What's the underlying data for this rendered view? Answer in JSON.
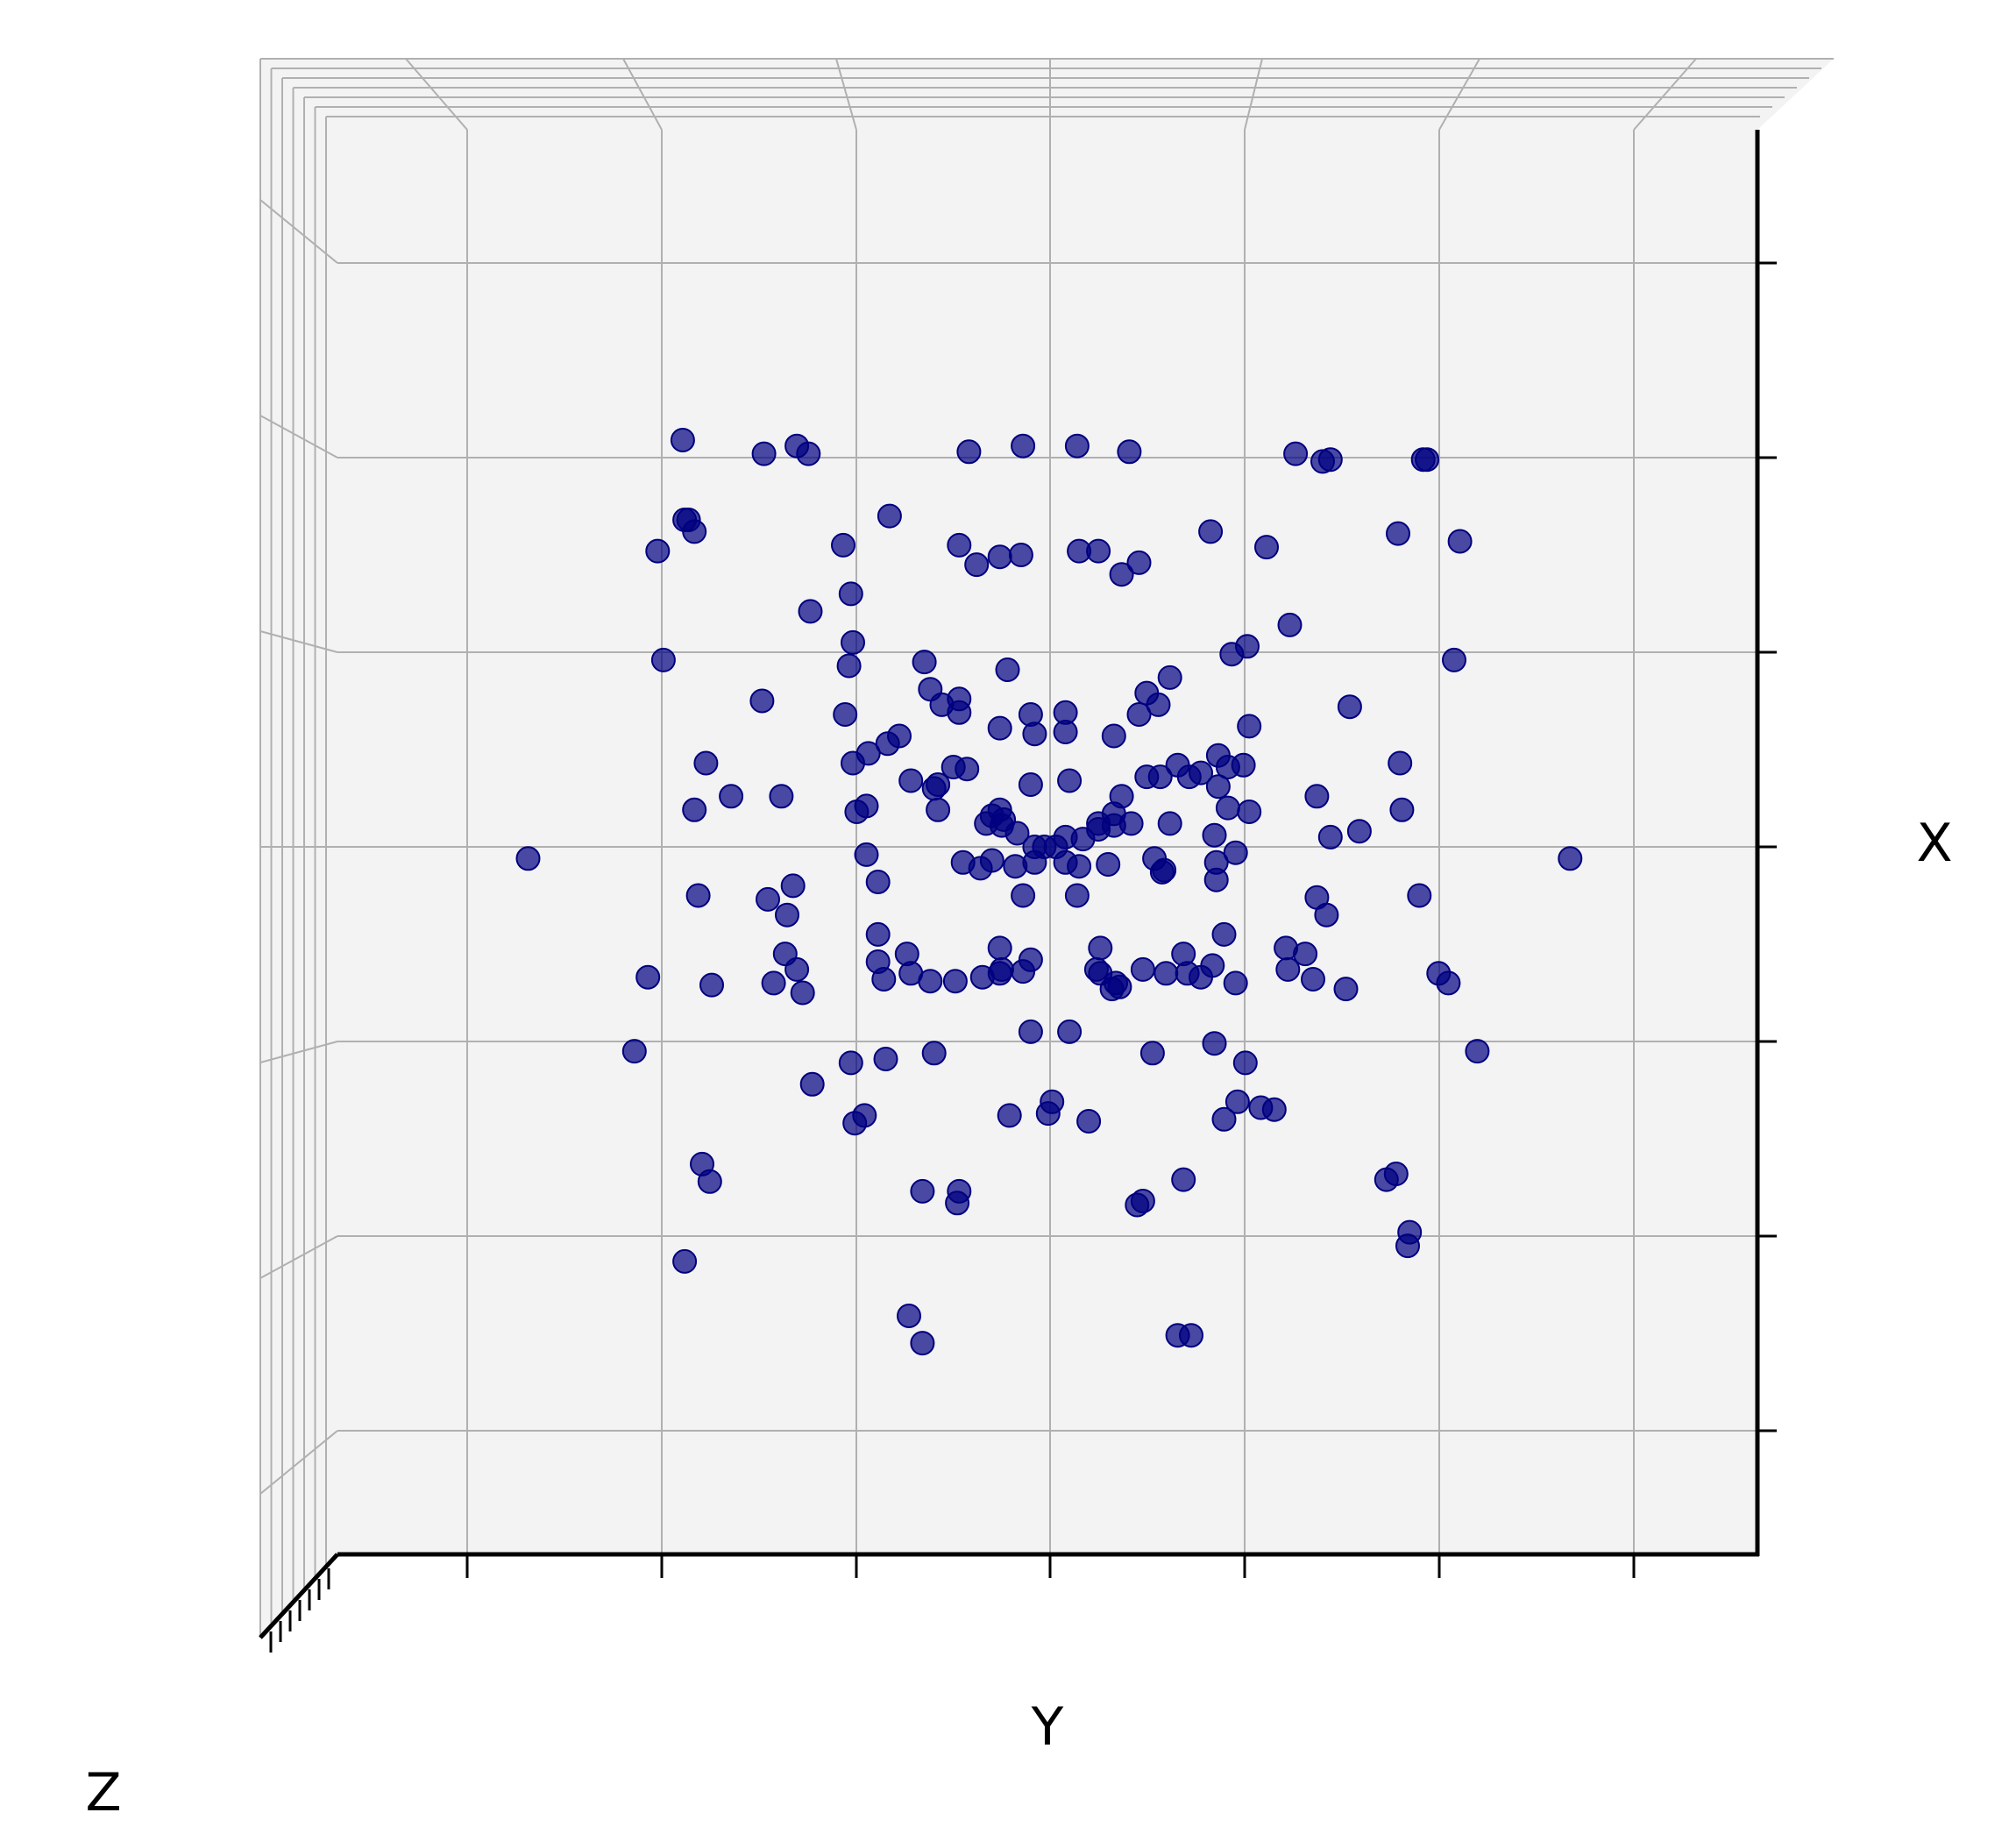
{
  "chart_data": {
    "type": "scatter",
    "projection": "3d",
    "title": "",
    "xlabel": "X",
    "ylabel": "Y",
    "zlabel": "Z",
    "tick_labels_visible": false,
    "grid": true,
    "ylim": [
      -3,
      3
    ],
    "xlim": [
      -3,
      3
    ],
    "colors": {
      "marker": "#000080",
      "pane": "#f3f3f3",
      "grid": "#b0b0b0",
      "axis": "#000000"
    },
    "series": [
      {
        "points": [
          [
            -1.9,
            2.09
          ],
          [
            -1.48,
            2.02
          ],
          [
            -1.31,
            2.06
          ],
          [
            -1.25,
            2.02
          ],
          [
            -0.42,
            2.03
          ],
          [
            -0.14,
            2.06
          ],
          [
            0.14,
            2.06
          ],
          [
            0.41,
            2.03
          ],
          [
            1.27,
            2.02
          ],
          [
            1.41,
            1.98
          ],
          [
            1.45,
            1.99
          ],
          [
            1.93,
            1.99
          ],
          [
            1.95,
            1.99
          ],
          [
            -1.87,
            1.68
          ],
          [
            -1.89,
            1.68
          ],
          [
            -1.84,
            1.62
          ],
          [
            -2.03,
            1.52
          ],
          [
            -0.83,
            1.7
          ],
          [
            -1.07,
            1.55
          ],
          [
            -0.47,
            1.55
          ],
          [
            -0.38,
            1.45
          ],
          [
            -0.26,
            1.49
          ],
          [
            -0.15,
            1.5
          ],
          [
            0.15,
            1.52
          ],
          [
            0.25,
            1.52
          ],
          [
            0.37,
            1.4
          ],
          [
            0.46,
            1.46
          ],
          [
            0.83,
            1.62
          ],
          [
            1.12,
            1.54
          ],
          [
            1.8,
            1.61
          ],
          [
            2.12,
            1.57
          ],
          [
            -1.24,
            1.21
          ],
          [
            -1.03,
            1.3
          ],
          [
            -1.02,
            1.05
          ],
          [
            -1.04,
            0.93
          ],
          [
            -2.0,
            0.96
          ],
          [
            -1.49,
            0.75
          ],
          [
            -1.06,
            0.68
          ],
          [
            -0.65,
            0.95
          ],
          [
            -0.62,
            0.81
          ],
          [
            -0.22,
            0.91
          ],
          [
            0.62,
            0.87
          ],
          [
            0.5,
            0.79
          ],
          [
            0.94,
            0.99
          ],
          [
            1.02,
            1.03
          ],
          [
            1.24,
            1.14
          ],
          [
            1.03,
            0.62
          ],
          [
            1.55,
            0.72
          ],
          [
            2.09,
            0.96
          ],
          [
            -0.56,
            0.73
          ],
          [
            -0.47,
            0.69
          ],
          [
            -0.47,
            0.76
          ],
          [
            -0.26,
            0.61
          ],
          [
            -0.1,
            0.68
          ],
          [
            0.08,
            0.69
          ],
          [
            0.08,
            0.59
          ],
          [
            -0.08,
            0.58
          ],
          [
            0.33,
            0.57
          ],
          [
            0.46,
            0.68
          ],
          [
            0.56,
            0.73
          ],
          [
            -1.78,
            0.43
          ],
          [
            -1.84,
            0.19
          ],
          [
            -1.39,
            0.26
          ],
          [
            -1.02,
            0.43
          ],
          [
            -1.0,
            0.18
          ],
          [
            -0.94,
            0.48
          ],
          [
            -0.84,
            0.53
          ],
          [
            -0.78,
            0.57
          ],
          [
            -0.72,
            0.34
          ],
          [
            -0.6,
            0.3
          ],
          [
            -0.58,
            0.32
          ],
          [
            -0.5,
            0.41
          ],
          [
            -0.43,
            0.4
          ],
          [
            -0.33,
            0.12
          ],
          [
            -0.25,
            0.11
          ],
          [
            -0.1,
            0.32
          ],
          [
            0.1,
            0.34
          ],
          [
            0.25,
            0.12
          ],
          [
            0.33,
            0.17
          ],
          [
            0.37,
            0.26
          ],
          [
            0.5,
            0.36
          ],
          [
            0.57,
            0.36
          ],
          [
            0.66,
            0.42
          ],
          [
            0.72,
            0.36
          ],
          [
            0.78,
            0.38
          ],
          [
            0.87,
            0.31
          ],
          [
            0.87,
            0.47
          ],
          [
            0.92,
            0.41
          ],
          [
            1.0,
            0.42
          ],
          [
            1.03,
            0.18
          ],
          [
            1.38,
            0.26
          ],
          [
            1.81,
            0.43
          ],
          [
            1.82,
            0.19
          ],
          [
            -1.65,
            0.26
          ],
          [
            -0.95,
            0.21
          ],
          [
            -0.58,
            0.19
          ],
          [
            -0.3,
            0.16
          ],
          [
            -0.26,
            0.19
          ],
          [
            -0.24,
            0.14
          ],
          [
            -0.17,
            0.07
          ],
          [
            -0.08,
            0.0
          ],
          [
            -0.03,
            0.0
          ],
          [
            0.03,
            0.0
          ],
          [
            0.08,
            0.05
          ],
          [
            0.17,
            0.04
          ],
          [
            0.25,
            0.09
          ],
          [
            0.33,
            0.11
          ],
          [
            0.42,
            0.12
          ],
          [
            0.62,
            0.12
          ],
          [
            0.85,
            0.06
          ],
          [
            0.92,
            0.2
          ],
          [
            1.6,
            0.08
          ],
          [
            1.45,
            0.05
          ],
          [
            -2.7,
            -0.06
          ],
          [
            -0.95,
            -0.04
          ],
          [
            -0.45,
            -0.08
          ],
          [
            -0.36,
            -0.11
          ],
          [
            -0.3,
            -0.07
          ],
          [
            -0.18,
            -0.1
          ],
          [
            -0.08,
            -0.08
          ],
          [
            0.08,
            -0.08
          ],
          [
            0.15,
            -0.1
          ],
          [
            0.3,
            -0.09
          ],
          [
            0.54,
            -0.06
          ],
          [
            0.59,
            -0.12
          ],
          [
            0.58,
            -0.13
          ],
          [
            0.86,
            -0.08
          ],
          [
            0.96,
            -0.03
          ],
          [
            2.69,
            -0.06
          ],
          [
            -1.82,
            -0.25
          ],
          [
            -1.46,
            -0.27
          ],
          [
            -1.33,
            -0.2
          ],
          [
            -1.36,
            -0.35
          ],
          [
            -0.89,
            -0.18
          ],
          [
            -0.14,
            -0.25
          ],
          [
            0.14,
            -0.25
          ],
          [
            0.86,
            -0.17
          ],
          [
            1.38,
            -0.26
          ],
          [
            1.43,
            -0.35
          ],
          [
            1.91,
            -0.25
          ],
          [
            -1.37,
            -0.55
          ],
          [
            -1.31,
            -0.63
          ],
          [
            -0.89,
            -0.45
          ],
          [
            -0.74,
            -0.55
          ],
          [
            -0.26,
            -0.52
          ],
          [
            -0.26,
            -0.65
          ],
          [
            0.26,
            -0.65
          ],
          [
            0.26,
            -0.52
          ],
          [
            0.69,
            -0.55
          ],
          [
            0.9,
            -0.45
          ],
          [
            1.23,
            -0.63
          ],
          [
            1.32,
            -0.55
          ],
          [
            2.01,
            -0.65
          ],
          [
            -2.08,
            -0.67
          ],
          [
            -1.75,
            -0.71
          ],
          [
            -1.43,
            -0.7
          ],
          [
            -1.28,
            -0.75
          ],
          [
            -0.89,
            -0.59
          ],
          [
            -0.86,
            -0.68
          ],
          [
            -0.72,
            -0.65
          ],
          [
            -0.62,
            -0.69
          ],
          [
            -0.49,
            -0.69
          ],
          [
            -0.35,
            -0.67
          ],
          [
            -0.25,
            -0.63
          ],
          [
            -0.14,
            -0.64
          ],
          [
            -0.1,
            -0.58
          ],
          [
            0.24,
            -0.63
          ],
          [
            0.32,
            -0.73
          ],
          [
            0.34,
            -0.7
          ],
          [
            0.36,
            -0.72
          ],
          [
            0.48,
            -0.63
          ],
          [
            0.6,
            -0.65
          ],
          [
            0.71,
            -0.65
          ],
          [
            0.78,
            -0.67
          ],
          [
            0.84,
            -0.61
          ],
          [
            0.96,
            -0.7
          ],
          [
            1.22,
            -0.52
          ],
          [
            1.36,
            -0.68
          ],
          [
            1.53,
            -0.73
          ],
          [
            2.06,
            -0.7
          ],
          [
            -2.15,
            -1.05
          ],
          [
            -1.23,
            -1.22
          ],
          [
            -0.85,
            -1.09
          ],
          [
            -1.03,
            -1.11
          ],
          [
            -0.6,
            -1.06
          ],
          [
            -0.1,
            -0.95
          ],
          [
            0.1,
            -0.95
          ],
          [
            0.53,
            -1.06
          ],
          [
            0.85,
            -1.01
          ],
          [
            1.01,
            -1.11
          ],
          [
            2.21,
            -1.05
          ],
          [
            -1.01,
            -1.42
          ],
          [
            -0.96,
            -1.38
          ],
          [
            -0.21,
            -1.38
          ],
          [
            0.01,
            -1.31
          ],
          [
            -0.01,
            -1.37
          ],
          [
            0.2,
            -1.41
          ],
          [
            0.9,
            -1.4
          ],
          [
            0.97,
            -1.31
          ],
          [
            1.09,
            -1.34
          ],
          [
            1.16,
            -1.35
          ],
          [
            -1.8,
            -1.63
          ],
          [
            -1.76,
            -1.72
          ],
          [
            -0.66,
            -1.77
          ],
          [
            -0.47,
            -1.77
          ],
          [
            -0.48,
            -1.83
          ],
          [
            0.45,
            -1.84
          ],
          [
            0.48,
            -1.82
          ],
          [
            0.69,
            -1.71
          ],
          [
            1.74,
            -1.71
          ],
          [
            1.79,
            -1.68
          ],
          [
            1.86,
            -1.98
          ],
          [
            1.85,
            -2.05
          ],
          [
            -1.89,
            -2.13
          ],
          [
            -0.73,
            -2.41
          ],
          [
            -0.66,
            -2.55
          ],
          [
            0.66,
            -2.51
          ],
          [
            0.73,
            -2.51
          ]
        ]
      }
    ]
  }
}
